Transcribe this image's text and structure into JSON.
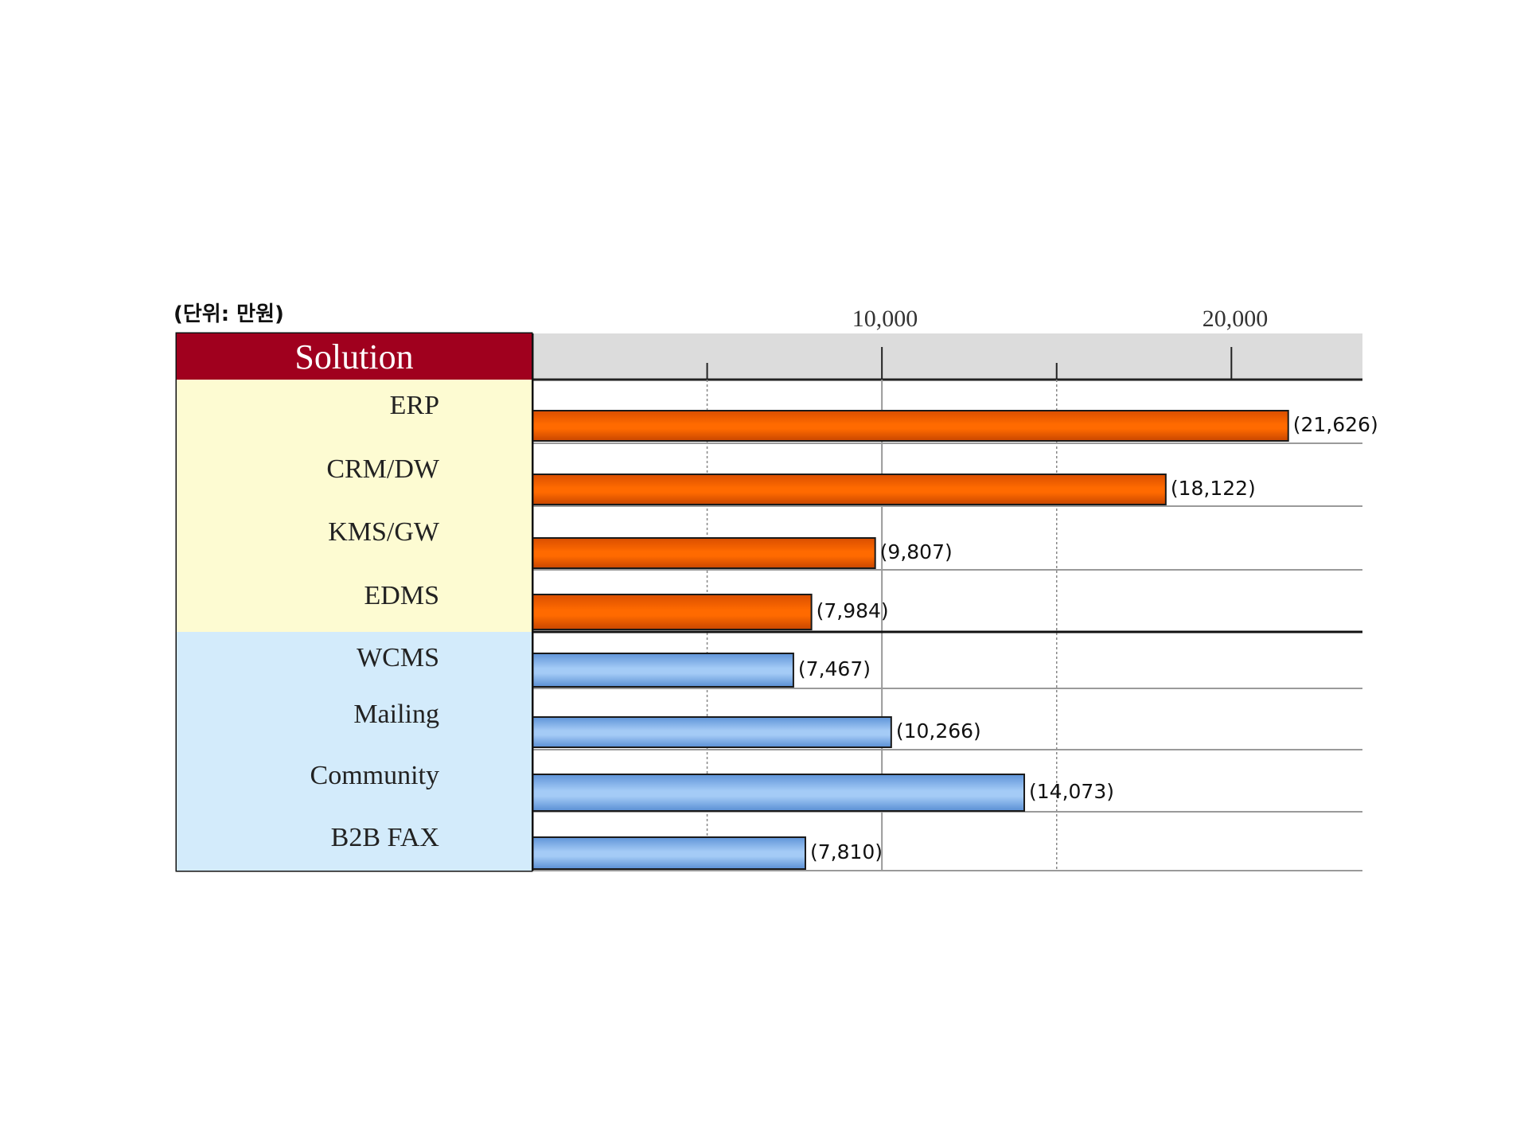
{
  "chart_data": {
    "type": "bar",
    "orientation": "horizontal",
    "unit_note": "(단위: 만원)",
    "header_label": "Solution",
    "xlim": [
      0,
      23750
    ],
    "x_tick_labels": [
      {
        "value": 10000,
        "label": "10,000"
      },
      {
        "value": 20000,
        "label": "20,000"
      }
    ],
    "grid": "vertical lines at 5000, 10000, 15000",
    "categories": [
      "ERP",
      "CRM/DW",
      "KMS/GW",
      "EDMS",
      "WCMS",
      "Mailing",
      "Community",
      "B2B FAX"
    ],
    "values": [
      21626,
      18122,
      9807,
      7984,
      7467,
      10266,
      14073,
      7810
    ],
    "value_labels": [
      "(21,626)",
      "(18,122)",
      "(9,807)",
      "(7,984)",
      "(7,467)",
      "(10,266)",
      "(14,073)",
      "(7,810)"
    ],
    "groups": [
      {
        "categories": [
          "ERP",
          "CRM/DW",
          "KMS/GW",
          "EDMS"
        ],
        "bar_color": "#ff6600",
        "cell_color": "#fdfbd2"
      },
      {
        "categories": [
          "WCMS",
          "Mailing",
          "Community",
          "B2B FAX"
        ],
        "bar_color": "#86b4ee",
        "cell_color": "#d3ebfb"
      }
    ],
    "colors": {
      "header_bg": "#a0001e",
      "axis_band": "#dcdcdc"
    }
  }
}
